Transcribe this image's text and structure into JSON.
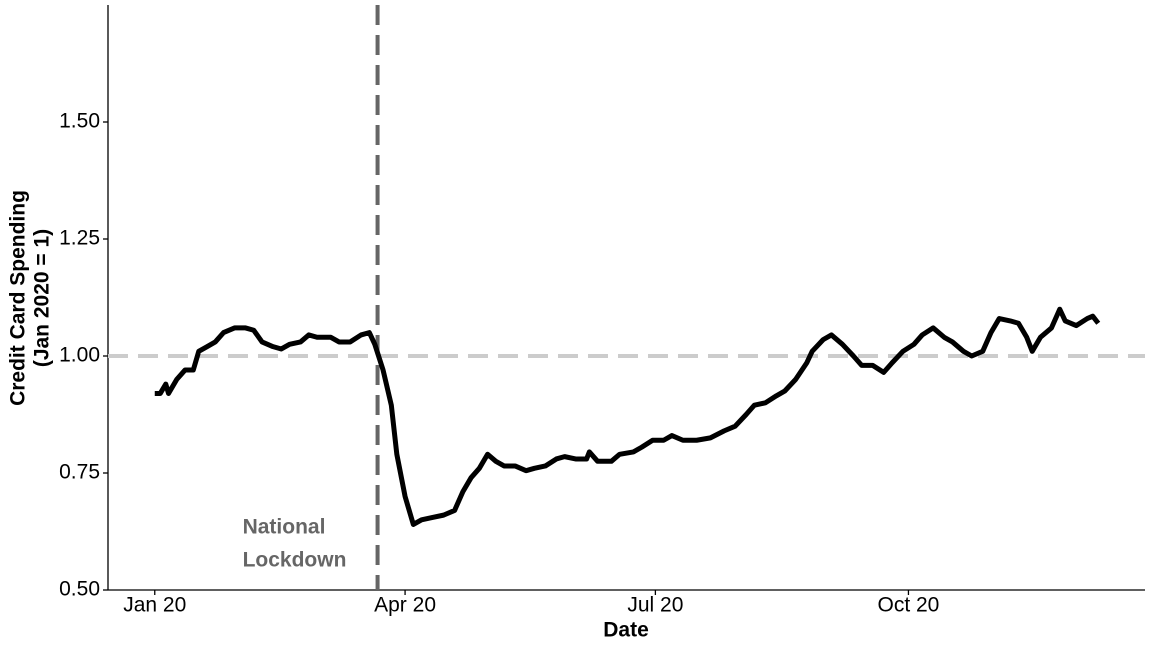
{
  "chart_data": {
    "type": "line",
    "xlabel": "Date",
    "ylabel": [
      "Credit Card Spending",
      "(Jan 2020 = 1)"
    ],
    "annotation": [
      "National",
      "Lockdown"
    ],
    "vline": 82,
    "vline_color": "#666666",
    "hline": 1.0,
    "hline_color": "#cccccc",
    "xlim": [
      -16,
      361
    ],
    "xticks": [
      {
        "value": 1,
        "label": "Jan 20"
      },
      {
        "value": 92,
        "label": "Apr 20"
      },
      {
        "value": 183,
        "label": "Jul 20"
      },
      {
        "value": 275,
        "label": "Oct 20"
      }
    ],
    "ylim": [
      0.5,
      1.75
    ],
    "yticks": [
      {
        "value": 0.5,
        "label": "0.50"
      },
      0.75,
      {
        "value": 1.0,
        "label": "1.00"
      },
      1.25,
      {
        "value": 1.5,
        "label": "1.50"
      }
    ],
    "grid": false,
    "x": [
      1,
      3,
      5,
      6,
      9,
      12,
      15,
      17,
      20,
      23,
      26,
      30,
      34,
      37,
      40,
      44,
      47,
      50,
      54,
      57,
      60,
      65,
      68,
      72,
      76,
      79,
      81,
      84,
      87,
      89,
      92,
      95,
      98,
      102,
      106,
      110,
      113,
      116,
      119,
      122,
      125,
      128,
      132,
      136,
      139,
      143,
      147,
      150,
      154,
      158,
      159,
      162,
      167,
      170,
      175,
      178,
      182,
      186,
      189,
      193,
      198,
      203,
      208,
      212,
      216,
      219,
      223,
      227,
      230,
      234,
      238,
      240,
      244,
      247,
      251,
      255,
      258,
      262,
      266,
      269,
      273,
      277,
      280,
      284,
      288,
      291,
      295,
      298,
      302,
      305,
      308,
      312,
      315,
      318,
      320,
      323,
      327,
      330,
      332,
      336,
      340,
      342,
      344
    ],
    "series": [
      {
        "name": "Credit card spending",
        "color": "#000000",
        "values": [
          0.92,
          0.92,
          0.94,
          0.92,
          0.95,
          0.97,
          0.97,
          1.01,
          1.02,
          1.03,
          1.05,
          1.06,
          1.06,
          1.055,
          1.03,
          1.02,
          1.015,
          1.025,
          1.03,
          1.045,
          1.04,
          1.04,
          1.03,
          1.03,
          1.045,
          1.05,
          1.025,
          0.97,
          0.895,
          0.79,
          0.7,
          0.64,
          0.65,
          0.655,
          0.66,
          0.67,
          0.71,
          0.74,
          0.76,
          0.79,
          0.775,
          0.765,
          0.765,
          0.755,
          0.76,
          0.765,
          0.78,
          0.785,
          0.78,
          0.78,
          0.795,
          0.775,
          0.775,
          0.79,
          0.795,
          0.805,
          0.82,
          0.82,
          0.83,
          0.82,
          0.82,
          0.825,
          0.84,
          0.85,
          0.875,
          0.895,
          0.9,
          0.915,
          0.925,
          0.95,
          0.985,
          1.01,
          1.035,
          1.045,
          1.025,
          1.0,
          0.98,
          0.98,
          0.965,
          0.985,
          1.01,
          1.025,
          1.045,
          1.06,
          1.04,
          1.03,
          1.01,
          1.0,
          1.01,
          1.05,
          1.08,
          1.075,
          1.07,
          1.04,
          1.01,
          1.04,
          1.06,
          1.1,
          1.075,
          1.065,
          1.08,
          1.085,
          1.07
        ]
      }
    ]
  }
}
